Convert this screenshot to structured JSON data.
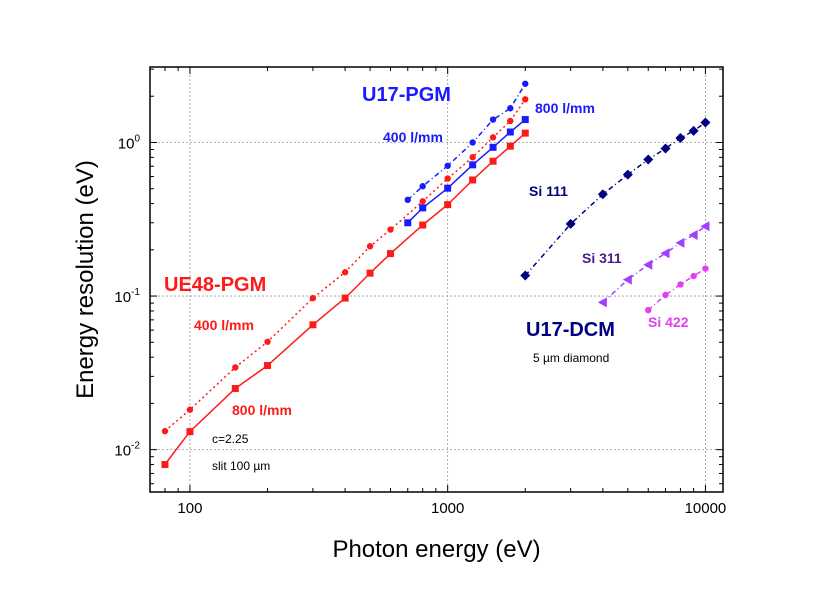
{
  "chart_data": {
    "type": "line",
    "xlabel": "Photon energy (eV)",
    "ylabel": "Energy resolution (eV)",
    "xscale": "log",
    "yscale": "log",
    "xlim": [
      70,
      11700
    ],
    "ylim": [
      0.0053,
      3.1
    ],
    "grid": true,
    "xticks": [
      {
        "v": 100,
        "label": "100"
      },
      {
        "v": 1000,
        "label": "1000"
      },
      {
        "v": 10000,
        "label": "10000"
      }
    ],
    "yticks": [
      {
        "v": 0.01,
        "base": "10",
        "exp": "-2"
      },
      {
        "v": 0.1,
        "base": "10",
        "exp": "-1"
      },
      {
        "v": 1,
        "base": "10",
        "exp": "0"
      }
    ],
    "series": [
      {
        "name": "UE48-PGM 800 l/mm",
        "color": "#ff1a1a",
        "marker": "square",
        "dash": "solid",
        "x": [
          80,
          100,
          150,
          200,
          300,
          400,
          500,
          600,
          800,
          1000,
          1250,
          1500,
          1750,
          2000
        ],
        "y": [
          0.008,
          0.0131,
          0.025,
          0.0353,
          0.065,
          0.097,
          0.141,
          0.189,
          0.29,
          0.394,
          0.57,
          0.755,
          0.946,
          1.15
        ]
      },
      {
        "name": "UE48-PGM 400 l/mm",
        "color": "#ff1a1a",
        "marker": "circle",
        "dash": "dot",
        "x": [
          80,
          100,
          150,
          200,
          300,
          400,
          500,
          600,
          800,
          1000,
          1250,
          1500,
          1750,
          2000
        ],
        "y": [
          0.0132,
          0.0182,
          0.0343,
          0.0504,
          0.097,
          0.143,
          0.211,
          0.271,
          0.414,
          0.582,
          0.802,
          1.08,
          1.38,
          1.91
        ]
      },
      {
        "name": "U17-PGM 800 l/mm",
        "color": "#1a1aff",
        "marker": "square",
        "dash": "solid",
        "x": [
          700,
          800,
          1000,
          1250,
          1500,
          1750,
          2000
        ],
        "y": [
          0.3,
          0.375,
          0.504,
          0.715,
          0.93,
          1.17,
          1.41
        ]
      },
      {
        "name": "U17-PGM 400 l/mm",
        "color": "#1a1aff",
        "marker": "circle",
        "dash": "dashdot",
        "x": [
          700,
          800,
          1000,
          1250,
          1500,
          1750,
          2000
        ],
        "y": [
          0.423,
          0.519,
          0.705,
          1.0,
          1.41,
          1.67,
          2.41
        ]
      },
      {
        "name": "U17-DCM Si 111",
        "color": "#000080",
        "marker": "diamond",
        "dash": "dashdot",
        "x": [
          2000,
          3000,
          4000,
          5000,
          6000,
          7000,
          8000,
          9000,
          10000
        ],
        "y": [
          0.136,
          0.295,
          0.46,
          0.618,
          0.775,
          0.914,
          1.07,
          1.19,
          1.35
        ]
      },
      {
        "name": "U17-DCM Si 311",
        "color": "#a040ff",
        "marker": "triangle-left",
        "dash": "dashdot",
        "x": [
          4000,
          5000,
          6000,
          7000,
          8000,
          9000,
          10000
        ],
        "y": [
          0.091,
          0.128,
          0.16,
          0.19,
          0.222,
          0.25,
          0.285
        ]
      },
      {
        "name": "U17-DCM Si 422",
        "color": "#e040f0",
        "marker": "circle",
        "dash": "dashdot",
        "x": [
          6000,
          7000,
          8000,
          9000,
          10000
        ],
        "y": [
          0.081,
          0.1016,
          0.119,
          0.135,
          0.151
        ]
      }
    ],
    "annotations": {
      "u17_pgm": "U17-PGM",
      "u17_800": "800 l/mm",
      "u17_400": "400 l/mm",
      "si111": "Si 111",
      "ue48_pgm": "UE48-PGM",
      "ue48_400": "400 l/mm",
      "si311": "Si 311",
      "si422": "Si 422",
      "u17_dcm": "U17-DCM",
      "diamond": "5 µm diamond",
      "ue48_800": "800 l/mm",
      "c_value": "c=2.25",
      "slit": "slit 100 µm"
    }
  }
}
